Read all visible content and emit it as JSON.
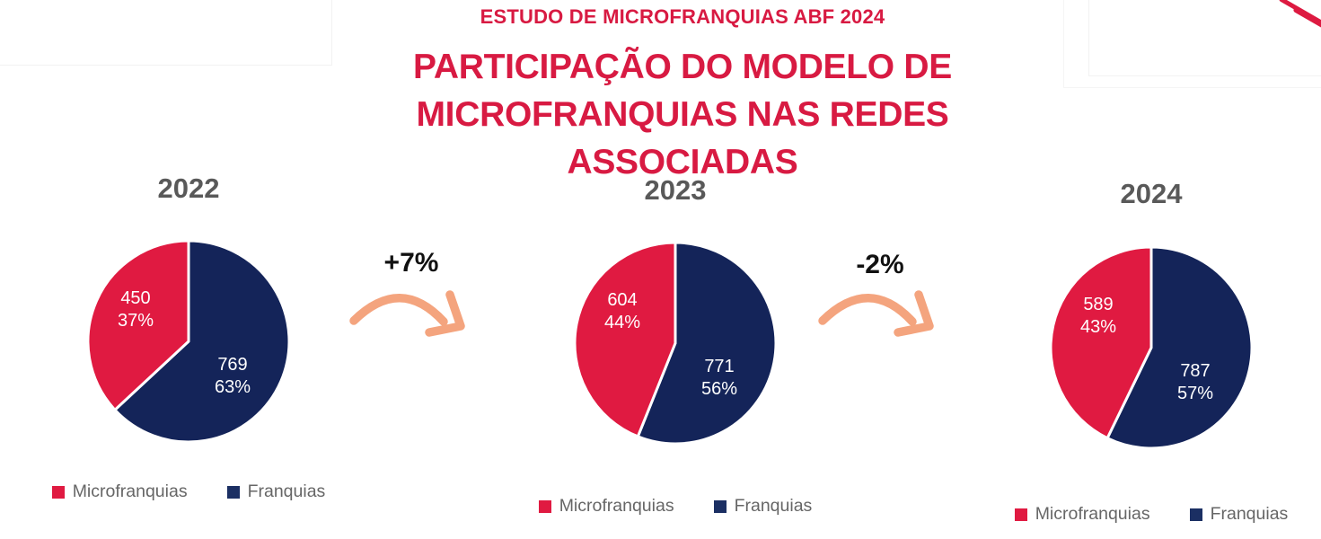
{
  "header": {
    "eyebrow": "ESTUDO DE MICROFRANQUIAS ABF 2024",
    "title_line1": "PARTICIPAÇÃO DO MODELO DE",
    "title_line2": "MICROFRANQUIAS NAS REDES ASSOCIADAS"
  },
  "colors": {
    "crimson_title": "#D81A42",
    "pie_red": "#E01A41",
    "pie_navy": "#142459",
    "legend_navy": "#1B2F63",
    "year_gray": "#595959",
    "legend_text_gray": "#666666",
    "arrow_salmon": "#F4A47E",
    "change_label_black": "#111111",
    "faint_frame_gray": "#F2F2F2"
  },
  "legend": {
    "microfranquias": "Microfranquias",
    "franquias": "Franquias"
  },
  "transitions": [
    {
      "from": "2022",
      "to": "2023",
      "label": "+7%"
    },
    {
      "from": "2023",
      "to": "2024",
      "label": "-2%"
    }
  ],
  "chart_data": [
    {
      "type": "pie",
      "title": "2022",
      "labels": [
        "Microfranquias",
        "Franquias"
      ],
      "values": [
        450,
        769
      ],
      "value_labels": [
        "450",
        "769"
      ],
      "pct_labels": [
        "37%",
        "63%"
      ],
      "colors": [
        "#E01A41",
        "#142459"
      ],
      "start_angle": "top",
      "direction": "clockwise, Franquias slice first"
    },
    {
      "type": "pie",
      "title": "2023",
      "labels": [
        "Microfranquias",
        "Franquias"
      ],
      "values": [
        604,
        771
      ],
      "value_labels": [
        "604",
        "771"
      ],
      "pct_labels": [
        "44%",
        "56%"
      ],
      "colors": [
        "#E01A41",
        "#142459"
      ],
      "start_angle": "top",
      "direction": "clockwise, Franquias slice first"
    },
    {
      "type": "pie",
      "title": "2024",
      "labels": [
        "Microfranquias",
        "Franquias"
      ],
      "values": [
        589,
        787
      ],
      "value_labels": [
        "589",
        "787"
      ],
      "pct_labels": [
        "43%",
        "57%"
      ],
      "colors": [
        "#E01A41",
        "#142459"
      ],
      "start_angle": "top",
      "direction": "clockwise, Franquias slice first"
    }
  ]
}
